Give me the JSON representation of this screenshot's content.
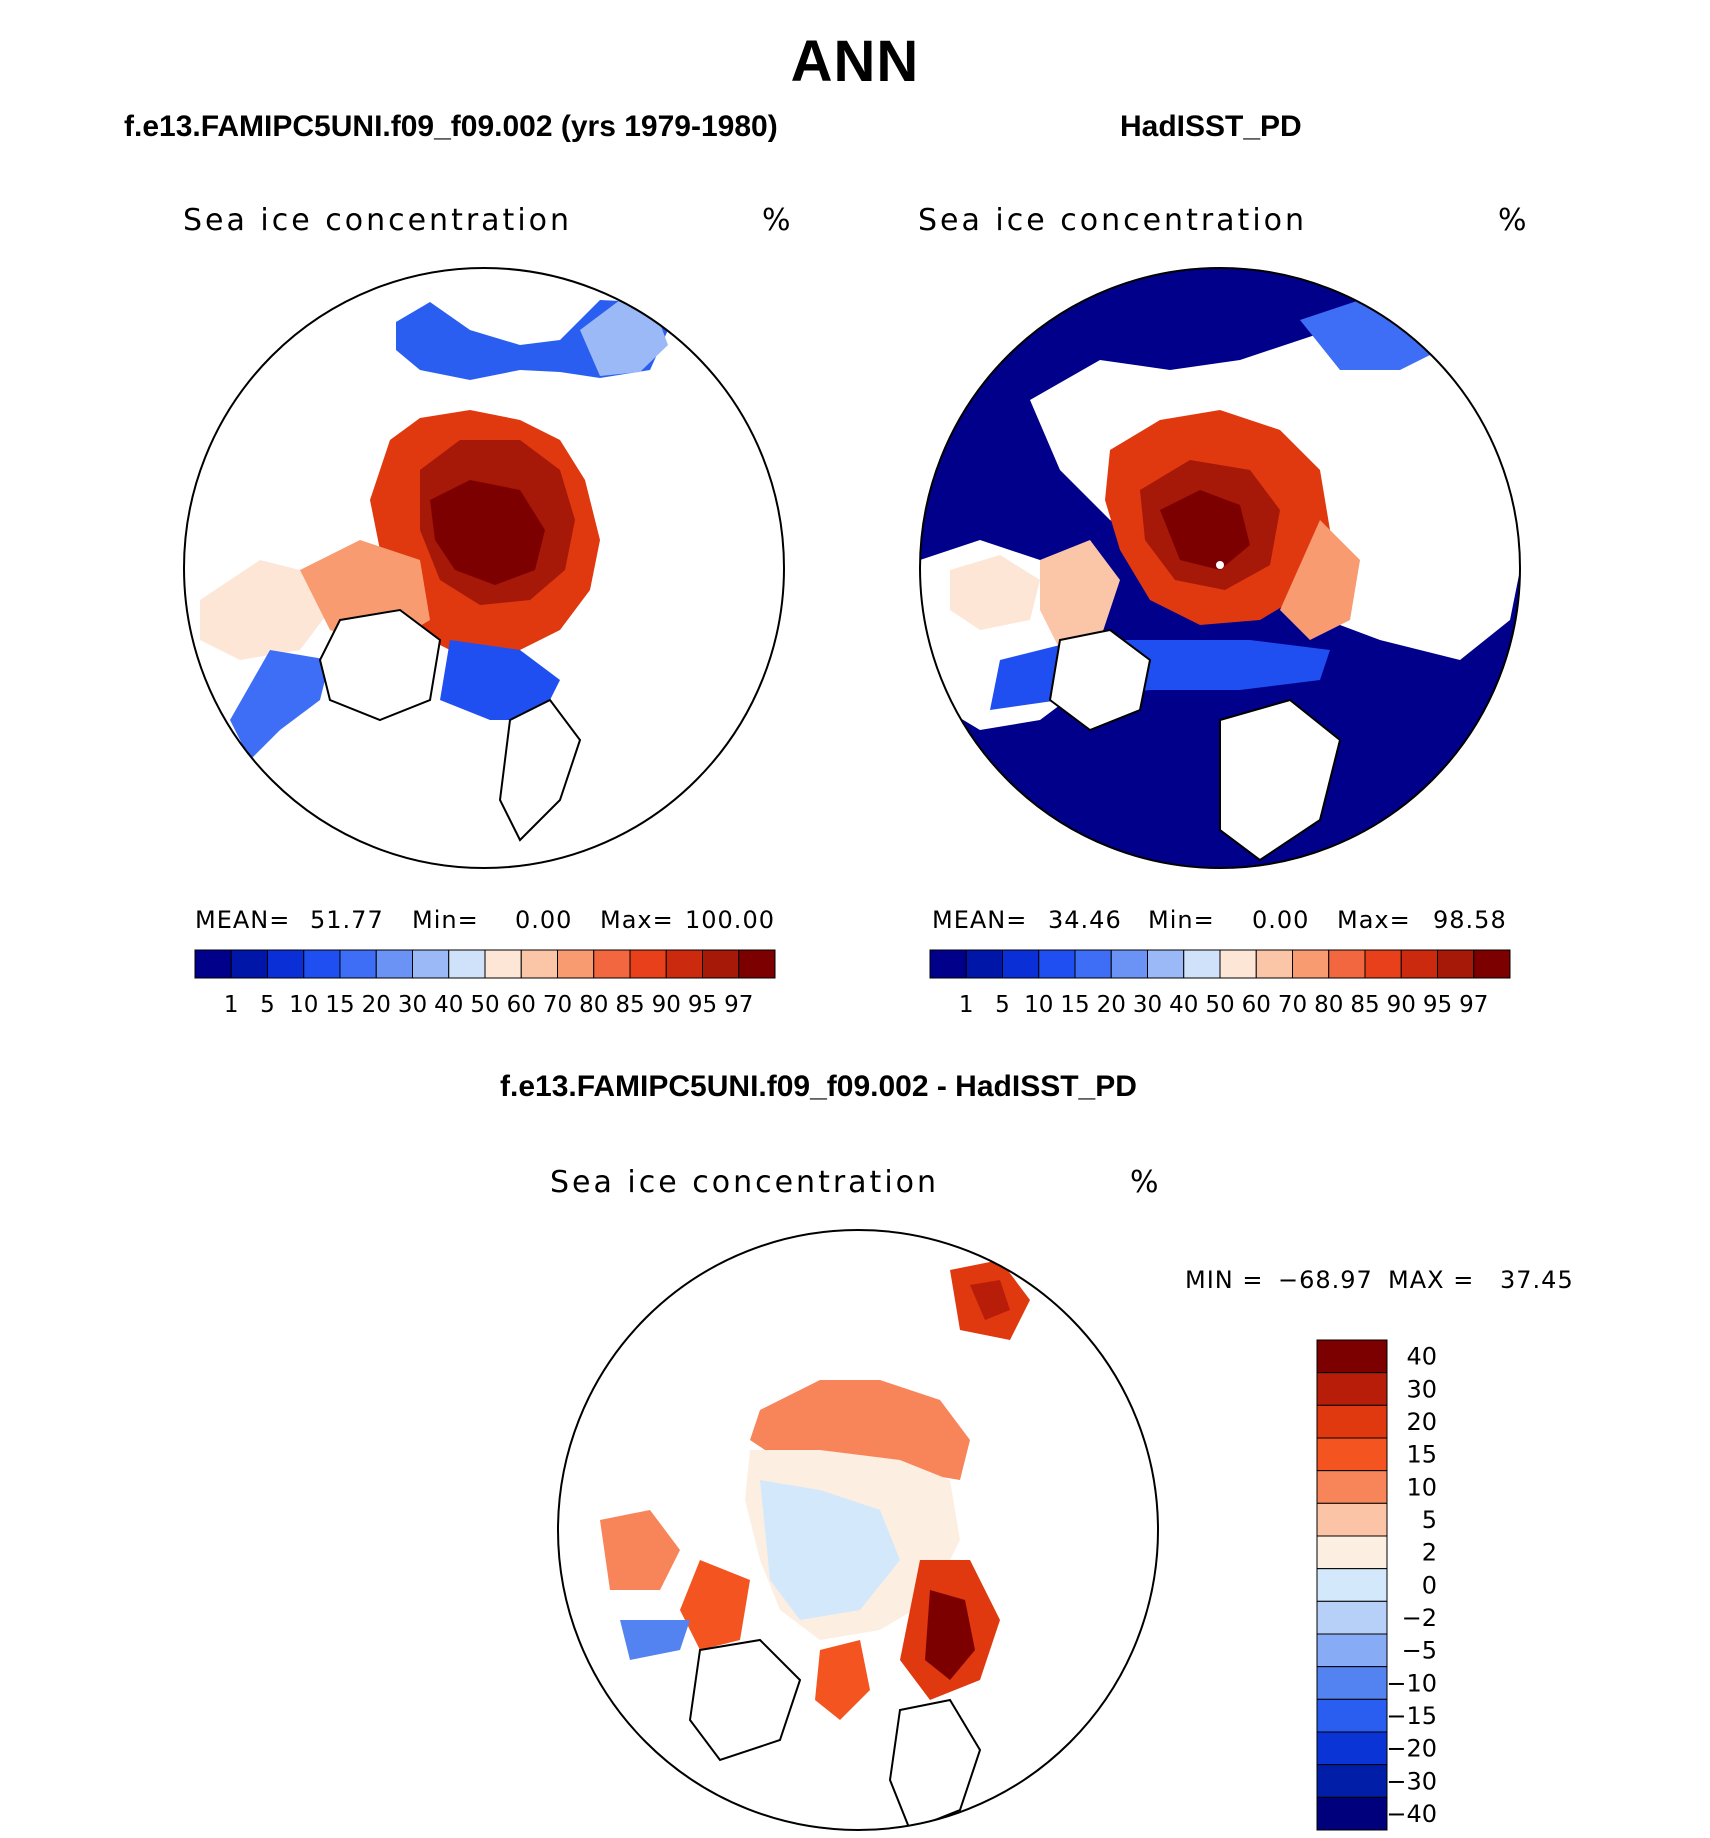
{
  "title": "ANN",
  "panels": [
    {
      "id": "model",
      "header": "f.e13.FAMIPC5UNI.f09_f09.002 (yrs 1979-1980)",
      "field_label": "Sea ice concentration",
      "unit": "%",
      "stats": {
        "mean_label": "MEAN=",
        "mean": "51.77",
        "min_label": "Min=",
        "min": "0.00",
        "max_label": "Max=",
        "max": "100.00"
      }
    },
    {
      "id": "obs",
      "header": "HadISST_PD",
      "field_label": "Sea ice concentration",
      "unit": "%",
      "stats": {
        "mean_label": "MEAN=",
        "mean": "34.46",
        "min_label": "Min=",
        "min": "0.00",
        "max_label": "Max=",
        "max": "98.58"
      }
    },
    {
      "id": "diff",
      "header": "f.e13.FAMIPC5UNI.f09_f09.002 - HadISST_PD",
      "field_label": "Sea ice concentration",
      "unit": "%",
      "stats": {
        "min_label": "MIN =",
        "min": "−68.97",
        "max_label": "MAX =",
        "max": "37.45"
      }
    }
  ],
  "chart_data": [
    {
      "type": "heatmap",
      "title": "f.e13.FAMIPC5UNI.f09_f09.002 (yrs 1979-1980)",
      "variable": "Sea ice concentration",
      "units": "%",
      "projection": "north polar stereographic",
      "mean": 51.77,
      "min": 0.0,
      "max": 100.0,
      "contour_levels": [
        "1",
        "5",
        "10",
        "15",
        "20",
        "30",
        "40",
        "50",
        "60",
        "70",
        "80",
        "85",
        "90",
        "95",
        "97"
      ],
      "colors": [
        "#00008a",
        "#0016a8",
        "#0a2fd6",
        "#1f4ff0",
        "#3d6ef5",
        "#6b93f5",
        "#9bb8f7",
        "#cfe2fa",
        "#fde6d6",
        "#fbc6a8",
        "#f89b71",
        "#f2673f",
        "#e8401b",
        "#cc2a0e",
        "#a61808",
        "#7d0000"
      ]
    },
    {
      "type": "heatmap",
      "title": "HadISST_PD",
      "variable": "Sea ice concentration",
      "units": "%",
      "projection": "north polar stereographic",
      "mean": 34.46,
      "min": 0.0,
      "max": 98.58,
      "contour_levels": [
        "1",
        "5",
        "10",
        "15",
        "20",
        "30",
        "40",
        "50",
        "60",
        "70",
        "80",
        "85",
        "90",
        "95",
        "97"
      ],
      "colors": [
        "#00008a",
        "#0016a8",
        "#0a2fd6",
        "#1f4ff0",
        "#3d6ef5",
        "#6b93f5",
        "#9bb8f7",
        "#cfe2fa",
        "#fde6d6",
        "#fbc6a8",
        "#f89b71",
        "#f2673f",
        "#e8401b",
        "#cc2a0e",
        "#a61808",
        "#7d0000"
      ]
    },
    {
      "type": "heatmap",
      "title": "f.e13.FAMIPC5UNI.f09_f09.002 - HadISST_PD",
      "variable": "Sea ice concentration",
      "units": "%",
      "projection": "north polar stereographic",
      "min": -68.97,
      "max": 37.45,
      "contour_levels": [
        "40",
        "30",
        "20",
        "15",
        "10",
        "5",
        "2",
        "0",
        "−2",
        "−5",
        "−10",
        "−15",
        "−20",
        "−30",
        "−40"
      ],
      "colors": [
        "#7d0000",
        "#b81d0a",
        "#e0380f",
        "#f4541f",
        "#f8845a",
        "#fbc4a6",
        "#fdeee2",
        "#d4e8fb",
        "#b7d0f8",
        "#87acf5",
        "#5383f0",
        "#2a5ef0",
        "#0a34d6",
        "#001ea8",
        "#00007d"
      ]
    }
  ]
}
